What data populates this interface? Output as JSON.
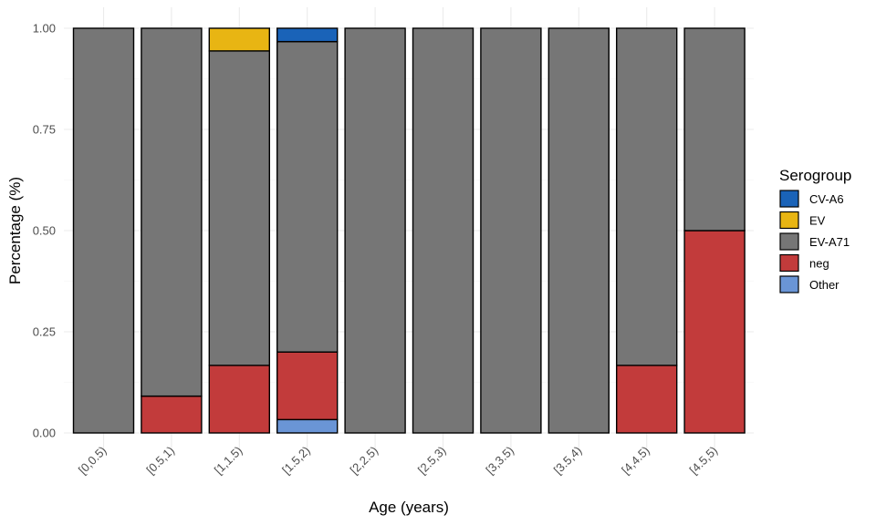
{
  "chart_data": {
    "type": "bar",
    "stacked": true,
    "title": "",
    "xlabel": "Age (years)",
    "ylabel": "Percentage (%)",
    "ylim": [
      0,
      1
    ],
    "yticks": [
      "0.00",
      "0.25",
      "0.50",
      "0.75",
      "1.00"
    ],
    "categories": [
      "[0,0.5)",
      "[0.5,1)",
      "[1,1.5)",
      "[1.5,2)",
      "[2,2.5)",
      "[2.5,3)",
      "[3,3.5)",
      "[3.5,4)",
      "[4,4.5)",
      "[4.5,5)"
    ],
    "legend": {
      "title": "Serogroup",
      "position": "right"
    },
    "grid": true,
    "stack_order_bottom_to_top": [
      "Other",
      "neg",
      "EV-A71",
      "EV",
      "CV-A6"
    ],
    "series": [
      {
        "name": "CV-A6",
        "color": "#1a63b8",
        "values": [
          0,
          0,
          0,
          0.033,
          0,
          0,
          0,
          0,
          0,
          0
        ]
      },
      {
        "name": "EV",
        "color": "#e8b513",
        "values": [
          0,
          0,
          0.056,
          0,
          0,
          0,
          0,
          0,
          0,
          0
        ]
      },
      {
        "name": "EV-A71",
        "color": "#767676",
        "values": [
          1,
          0.909,
          0.777,
          0.767,
          1,
          1,
          1,
          1,
          0.833,
          0.5
        ]
      },
      {
        "name": "neg",
        "color": "#c23b3b",
        "values": [
          0,
          0.091,
          0.167,
          0.167,
          0,
          0,
          0,
          0,
          0.167,
          0.5
        ]
      },
      {
        "name": "Other",
        "color": "#6a95d6",
        "values": [
          0,
          0,
          0,
          0.033,
          0,
          0,
          0,
          0,
          0,
          0
        ]
      }
    ]
  }
}
